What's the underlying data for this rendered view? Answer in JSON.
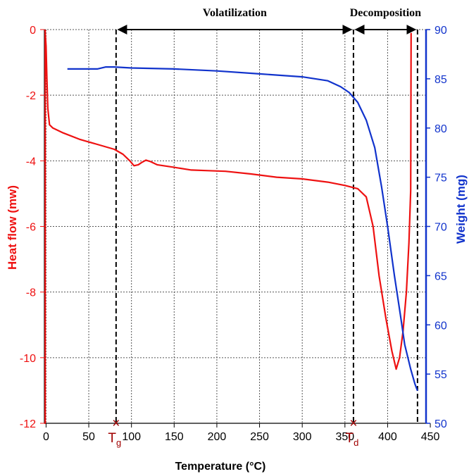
{
  "chart_data": {
    "type": "line",
    "xlabel": "Temperature (°C)",
    "y_left_label": "Heat flow (mw)",
    "y_right_label": "Weight (mg)",
    "xlim": [
      -2,
      445
    ],
    "y_left_lim": [
      -12,
      0
    ],
    "y_right_lim": [
      50,
      90
    ],
    "x_ticks": [
      0,
      50,
      100,
      150,
      200,
      250,
      300,
      350,
      400,
      450
    ],
    "y_left_ticks": [
      0,
      -2,
      -4,
      -6,
      -8,
      -10,
      -12
    ],
    "y_right_ticks": [
      90,
      85,
      80,
      75,
      70,
      65,
      60,
      55,
      50
    ],
    "grid": true,
    "colors": {
      "heat_flow": "#ee1111",
      "weight": "#1133cc",
      "marker": "#a00000"
    },
    "series": [
      {
        "axis": "left",
        "color": "#ee1111",
        "points": [
          [
            -1,
            0
          ],
          [
            -1,
            -12
          ],
          [
            -1,
            -0.1
          ],
          [
            0,
            -0.5
          ],
          [
            1,
            -1.5
          ],
          [
            2,
            -2.4
          ],
          [
            4,
            -2.9
          ],
          [
            8,
            -3.0
          ],
          [
            20,
            -3.15
          ],
          [
            40,
            -3.35
          ],
          [
            60,
            -3.5
          ],
          [
            80,
            -3.65
          ],
          [
            90,
            -3.8
          ],
          [
            98,
            -4.0
          ],
          [
            103,
            -4.15
          ],
          [
            108,
            -4.12
          ],
          [
            112,
            -4.05
          ],
          [
            117,
            -3.98
          ],
          [
            122,
            -4.02
          ],
          [
            130,
            -4.12
          ],
          [
            150,
            -4.2
          ],
          [
            170,
            -4.28
          ],
          [
            190,
            -4.3
          ],
          [
            210,
            -4.32
          ],
          [
            240,
            -4.4
          ],
          [
            270,
            -4.5
          ],
          [
            300,
            -4.55
          ],
          [
            330,
            -4.65
          ],
          [
            350,
            -4.75
          ],
          [
            365,
            -4.85
          ],
          [
            375,
            -5.1
          ],
          [
            383,
            -6.0
          ],
          [
            390,
            -7.5
          ],
          [
            398,
            -8.8
          ],
          [
            405,
            -9.8
          ],
          [
            410,
            -10.35
          ],
          [
            414,
            -10.0
          ],
          [
            418,
            -9.2
          ],
          [
            422,
            -8.0
          ],
          [
            425,
            -6.5
          ],
          [
            427,
            -4.9
          ],
          [
            427.5,
            -0.1
          ]
        ]
      },
      {
        "axis": "right",
        "color": "#1133cc",
        "points": [
          [
            25,
            86
          ],
          [
            60,
            86
          ],
          [
            70,
            86.2
          ],
          [
            80,
            86.2
          ],
          [
            100,
            86.1
          ],
          [
            150,
            86
          ],
          [
            200,
            85.8
          ],
          [
            250,
            85.5
          ],
          [
            300,
            85.2
          ],
          [
            330,
            84.8
          ],
          [
            345,
            84.2
          ],
          [
            355,
            83.6
          ],
          [
            365,
            82.6
          ],
          [
            375,
            80.8
          ],
          [
            385,
            78
          ],
          [
            393,
            74
          ],
          [
            400,
            70
          ],
          [
            408,
            65
          ],
          [
            415,
            61
          ],
          [
            420,
            58
          ],
          [
            427,
            55.5
          ],
          [
            432,
            54
          ],
          [
            435,
            53.3
          ]
        ]
      }
    ],
    "reference_lines": [
      82,
      360,
      435
    ],
    "annotations": {
      "volatilization": {
        "label": "Volatilization",
        "from": 82,
        "to": 360
      },
      "decomposition": {
        "label": "Decomposition",
        "from": 360,
        "to": 435
      }
    },
    "markers": [
      {
        "x": 82,
        "symbol": "×",
        "label": "T",
        "sub": "g"
      },
      {
        "x": 360,
        "symbol": "×",
        "label": "T",
        "sub": "d"
      }
    ]
  }
}
